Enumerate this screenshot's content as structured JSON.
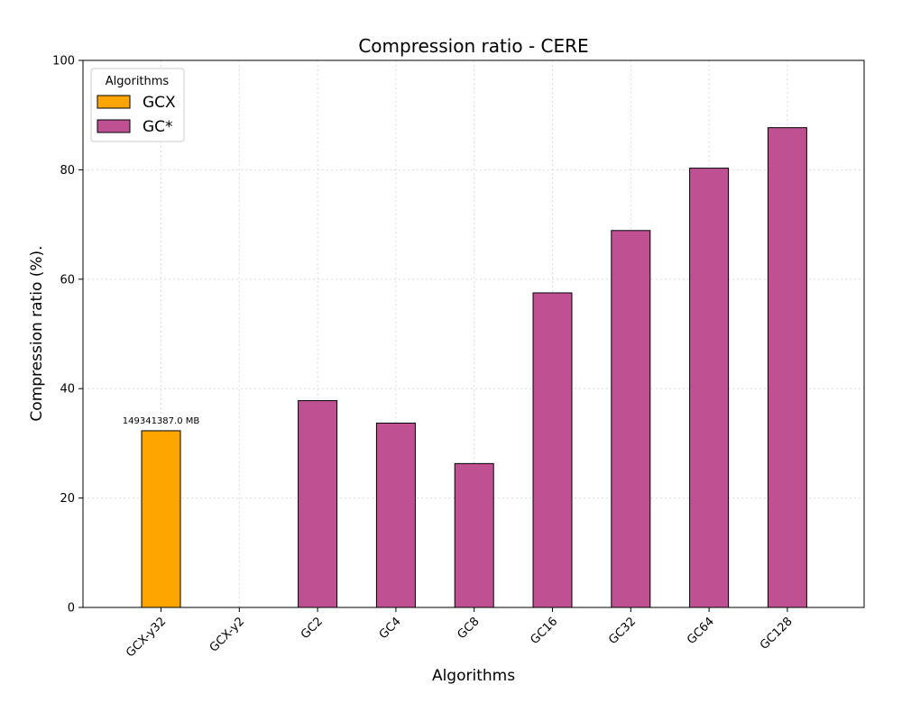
{
  "chart_data": {
    "type": "bar",
    "title": "Compression ratio -  CERE",
    "xlabel": "Algorithms",
    "ylabel": "Compression ratio (%).",
    "ylim": [
      0,
      100
    ],
    "yticks": [
      0,
      20,
      40,
      60,
      80,
      100
    ],
    "grid": true,
    "categories": [
      "GCX-y32",
      "GCX-y2",
      "GC2",
      "GC4",
      "GC8",
      "GC16",
      "GC32",
      "GC64",
      "GC128"
    ],
    "values": [
      32.3,
      null,
      37.8,
      33.7,
      26.3,
      57.5,
      68.9,
      80.3,
      87.7
    ],
    "bar_groups": [
      "GCX",
      "GCX",
      "GC*",
      "GC*",
      "GC*",
      "GC*",
      "GC*",
      "GC*",
      "GC*"
    ],
    "data_labels": [
      "149341387.0 MB",
      "",
      "",
      "",
      "",
      "",
      "",
      "",
      ""
    ],
    "legend": {
      "title": "Algorithms",
      "placement": "top-left",
      "entries": [
        {
          "name": "GCX",
          "color": "#FFA500"
        },
        {
          "name": "GC*",
          "color": "#BF5192"
        }
      ]
    },
    "colors": {
      "GCX": "#FFA500",
      "GC*": "#BF5192",
      "edge": "#000000",
      "grid": "#d3d3d3"
    }
  }
}
